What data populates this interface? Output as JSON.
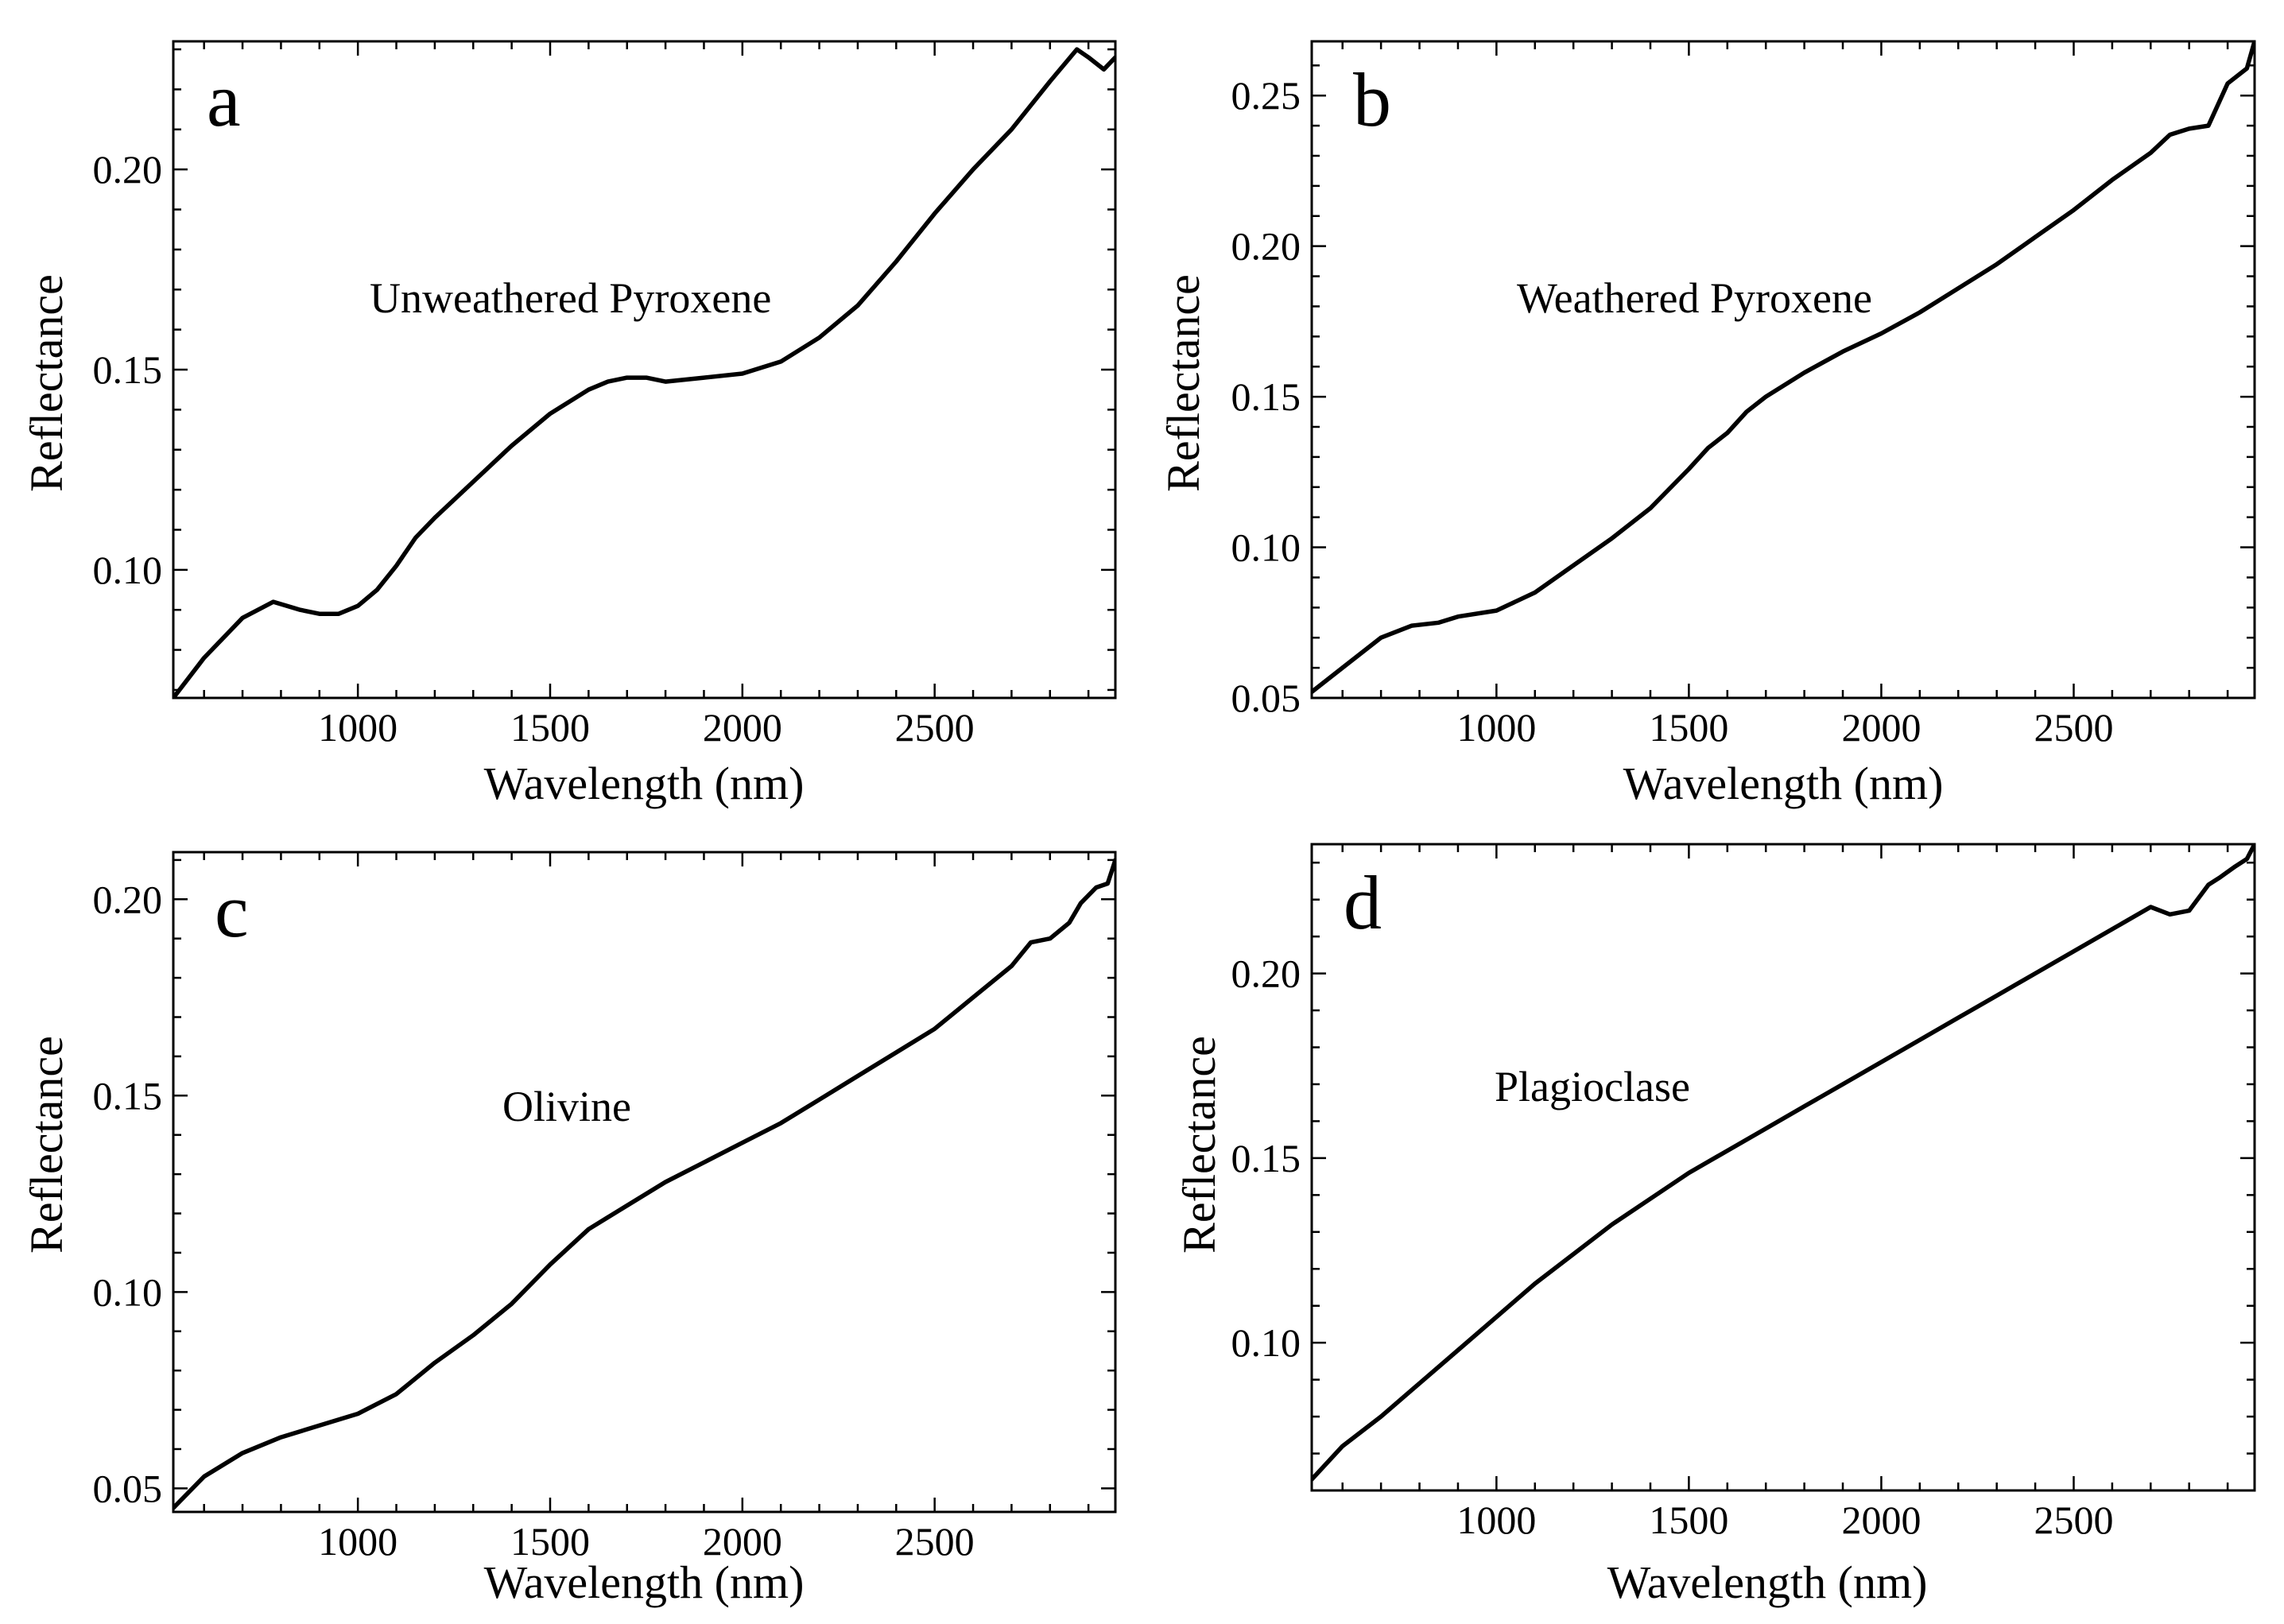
{
  "chart_data": [
    {
      "type": "line",
      "panel": "a",
      "annotation": "Unweathered Pyroxene",
      "xlabel": "Wavelength (nm)",
      "ylabel": "Reflectance",
      "xlim": [
        520,
        2970
      ],
      "ylim": [
        0.068,
        0.232
      ],
      "xticks": [
        1000,
        1500,
        2000,
        2500
      ],
      "xtick_labels": [
        "1000",
        "1500",
        "2000",
        "2500"
      ],
      "yticks": [
        0.1,
        0.15,
        0.2
      ],
      "ytick_labels": [
        "0.10",
        "0.15",
        "0.20"
      ],
      "grid": false,
      "x": [
        520,
        600,
        700,
        780,
        850,
        900,
        950,
        1000,
        1050,
        1100,
        1150,
        1200,
        1300,
        1400,
        1500,
        1550,
        1600,
        1650,
        1700,
        1750,
        1800,
        1900,
        2000,
        2100,
        2200,
        2300,
        2400,
        2500,
        2600,
        2700,
        2800,
        2870,
        2900,
        2940,
        2970
      ],
      "y": [
        0.068,
        0.078,
        0.088,
        0.092,
        0.09,
        0.089,
        0.089,
        0.091,
        0.095,
        0.101,
        0.108,
        0.113,
        0.122,
        0.131,
        0.139,
        0.142,
        0.145,
        0.147,
        0.148,
        0.148,
        0.147,
        0.148,
        0.149,
        0.152,
        0.158,
        0.166,
        0.177,
        0.189,
        0.2,
        0.21,
        0.222,
        0.23,
        0.228,
        0.225,
        0.228
      ]
    },
    {
      "type": "line",
      "panel": "b",
      "annotation": "Weathered Pyroxene",
      "xlabel": "Wavelength (nm)",
      "ylabel": "Reflectance",
      "xlim": [
        520,
        2970
      ],
      "ylim": [
        0.05,
        0.268
      ],
      "xticks": [
        1000,
        1500,
        2000,
        2500
      ],
      "xtick_labels": [
        "1000",
        "1500",
        "2000",
        "2500"
      ],
      "yticks": [
        0.05,
        0.1,
        0.15,
        0.2,
        0.25
      ],
      "ytick_labels": [
        "0.05",
        "0.10",
        "0.15",
        "0.20",
        "0.25"
      ],
      "grid": false,
      "x": [
        520,
        600,
        700,
        780,
        850,
        900,
        1000,
        1100,
        1200,
        1300,
        1400,
        1500,
        1550,
        1600,
        1650,
        1700,
        1800,
        1900,
        2000,
        2100,
        2200,
        2300,
        2400,
        2500,
        2600,
        2700,
        2750,
        2800,
        2850,
        2900,
        2950,
        2970
      ],
      "y": [
        0.052,
        0.06,
        0.07,
        0.074,
        0.075,
        0.077,
        0.079,
        0.085,
        0.094,
        0.103,
        0.113,
        0.126,
        0.133,
        0.138,
        0.145,
        0.15,
        0.158,
        0.165,
        0.171,
        0.178,
        0.186,
        0.194,
        0.203,
        0.212,
        0.222,
        0.231,
        0.237,
        0.239,
        0.24,
        0.254,
        0.259,
        0.268
      ]
    },
    {
      "type": "line",
      "panel": "c",
      "annotation": "Olivine",
      "xlabel": "Wavelength (nm)",
      "ylabel": "Reflectance",
      "xlim": [
        520,
        2970
      ],
      "ylim": [
        0.044,
        0.212
      ],
      "xticks": [
        1000,
        1500,
        2000,
        2500
      ],
      "xtick_labels": [
        "1000",
        "1500",
        "2000",
        "2500"
      ],
      "yticks": [
        0.05,
        0.1,
        0.15,
        0.2
      ],
      "ytick_labels": [
        "0.05",
        "0.10",
        "0.15",
        "0.20"
      ],
      "grid": false,
      "x": [
        520,
        600,
        700,
        800,
        900,
        1000,
        1100,
        1200,
        1300,
        1400,
        1500,
        1600,
        1700,
        1800,
        1900,
        2000,
        2100,
        2200,
        2300,
        2400,
        2500,
        2600,
        2700,
        2750,
        2800,
        2850,
        2880,
        2920,
        2950,
        2970
      ],
      "y": [
        0.045,
        0.053,
        0.059,
        0.063,
        0.066,
        0.069,
        0.074,
        0.082,
        0.089,
        0.097,
        0.107,
        0.116,
        0.122,
        0.128,
        0.133,
        0.138,
        0.143,
        0.149,
        0.155,
        0.161,
        0.167,
        0.175,
        0.183,
        0.189,
        0.19,
        0.194,
        0.199,
        0.203,
        0.204,
        0.21
      ]
    },
    {
      "type": "line",
      "panel": "d",
      "annotation": "Plagioclase",
      "xlabel": "Wavelength (nm)",
      "ylabel": "Reflectance",
      "xlim": [
        520,
        2970
      ],
      "ylim": [
        0.06,
        0.235
      ],
      "xticks": [
        1000,
        1500,
        2000,
        2500
      ],
      "xtick_labels": [
        "1000",
        "1500",
        "2000",
        "2500"
      ],
      "yticks": [
        0.1,
        0.15,
        0.2
      ],
      "ytick_labels": [
        "0.10",
        "0.15",
        "0.20"
      ],
      "grid": false,
      "x": [
        520,
        600,
        700,
        800,
        900,
        1000,
        1100,
        1200,
        1300,
        1400,
        1500,
        1600,
        1700,
        1800,
        1900,
        2000,
        2100,
        2200,
        2300,
        2400,
        2500,
        2600,
        2700,
        2750,
        2800,
        2850,
        2880,
        2920,
        2950,
        2970
      ],
      "y": [
        0.063,
        0.072,
        0.08,
        0.089,
        0.098,
        0.107,
        0.116,
        0.124,
        0.132,
        0.139,
        0.146,
        0.152,
        0.158,
        0.164,
        0.17,
        0.176,
        0.182,
        0.188,
        0.194,
        0.2,
        0.206,
        0.212,
        0.218,
        0.216,
        0.217,
        0.224,
        0.226,
        0.229,
        0.231,
        0.235
      ]
    }
  ]
}
